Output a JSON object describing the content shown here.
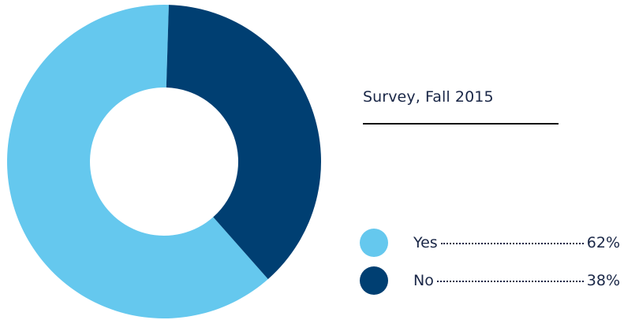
{
  "chart_data": {
    "type": "pie",
    "variant": "donut",
    "title": "Survey, Fall 2015",
    "legend_position": "right",
    "slices": [
      {
        "label": "Yes",
        "value": 62,
        "display": "62%",
        "color": "#65c8ee"
      },
      {
        "label": "No",
        "value": 38,
        "display": "38%",
        "color": "#003f72"
      }
    ]
  }
}
